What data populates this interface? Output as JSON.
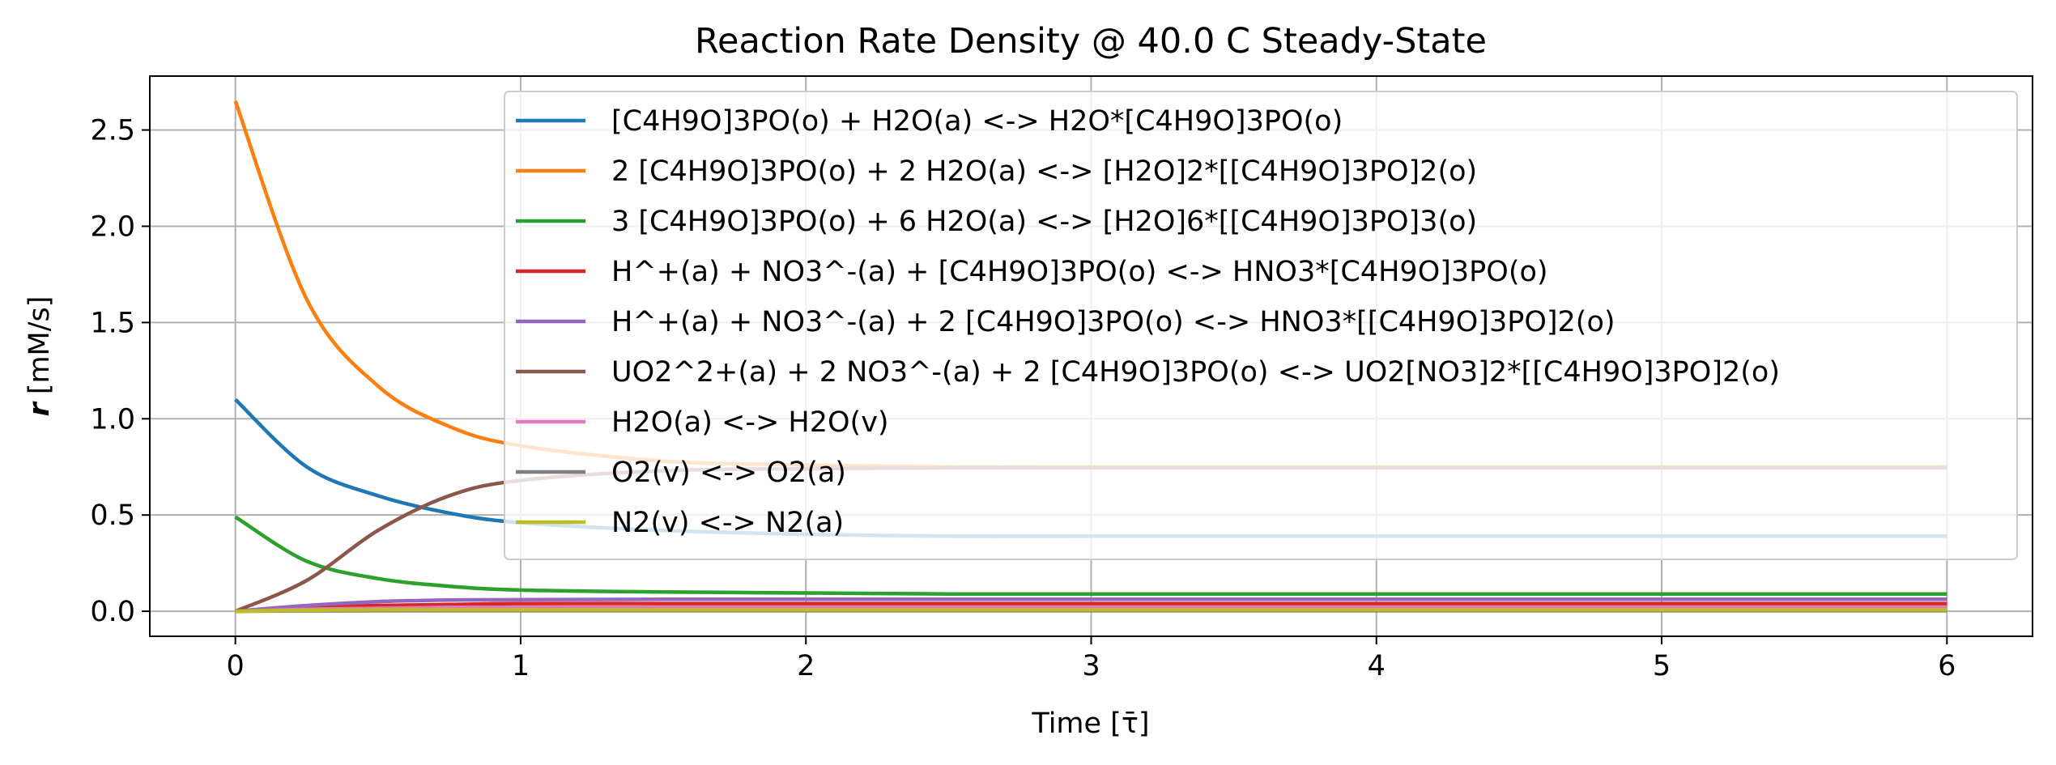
{
  "chart_data": {
    "type": "line",
    "title": "Reaction Rate Density @ 40.0 C Steady-State",
    "xlabel": "Time [τ̄]",
    "ylabel": "[mM/s]",
    "ylabel_symbol": "r",
    "xlim": [
      -0.3,
      6.3
    ],
    "ylim": [
      -0.13,
      2.78
    ],
    "xticks": [
      0,
      1,
      2,
      3,
      4,
      5,
      6
    ],
    "yticks": [
      0.0,
      0.5,
      1.0,
      1.5,
      2.0,
      2.5
    ],
    "xtick_labels": [
      "0",
      "1",
      "2",
      "3",
      "4",
      "5",
      "6"
    ],
    "ytick_labels": [
      "0.0",
      "0.5",
      "1.0",
      "1.5",
      "2.0",
      "2.5"
    ],
    "grid": true,
    "legend_position": "upper right",
    "x": [
      0,
      0.25,
      0.5,
      0.75,
      1.0,
      1.5,
      2.0,
      2.5,
      3.0,
      3.5,
      4.0,
      4.5,
      5.0,
      5.5,
      6.0
    ],
    "series": [
      {
        "name": "[C4H9O]3PO(o) + H2O(a) <-> H2O*[C4H9O]3PO(o)",
        "color": "#1f77b4",
        "values": [
          1.1,
          0.75,
          0.6,
          0.51,
          0.46,
          0.42,
          0.4,
          0.39,
          0.39,
          0.39,
          0.39,
          0.39,
          0.39,
          0.39,
          0.39
        ]
      },
      {
        "name": "2 [C4H9O]3PO(o) + 2 H2O(a) <-> [H2O]2*[[C4H9O]3PO]2(o)",
        "color": "#ff7f0e",
        "values": [
          2.65,
          1.62,
          1.17,
          0.96,
          0.86,
          0.78,
          0.76,
          0.75,
          0.75,
          0.75,
          0.75,
          0.75,
          0.75,
          0.75,
          0.75
        ]
      },
      {
        "name": "3 [C4H9O]3PO(o) + 6 H2O(a) <-> [H2O]6*[[C4H9O]3PO]3(o)",
        "color": "#2ca02c",
        "values": [
          0.49,
          0.26,
          0.17,
          0.13,
          0.11,
          0.1,
          0.095,
          0.09,
          0.09,
          0.09,
          0.09,
          0.09,
          0.09,
          0.09,
          0.09
        ]
      },
      {
        "name": "H^+(a) + NO3^-(a) + [C4H9O]3PO(o) <-> HNO3*[C4H9O]3PO(o)",
        "color": "#d62728",
        "values": [
          0.0,
          0.02,
          0.03,
          0.035,
          0.04,
          0.04,
          0.04,
          0.04,
          0.04,
          0.04,
          0.04,
          0.04,
          0.04,
          0.04,
          0.04
        ]
      },
      {
        "name": "H^+(a) + NO3^-(a) + 2 [C4H9O]3PO(o) <-> HNO3*[[C4H9O]3PO]2(o)",
        "color": "#9467bd",
        "values": [
          0.0,
          0.03,
          0.05,
          0.058,
          0.06,
          0.062,
          0.062,
          0.062,
          0.062,
          0.062,
          0.062,
          0.062,
          0.062,
          0.062,
          0.062
        ]
      },
      {
        "name": "UO2^2+(a) + 2 NO3^-(a) + 2 [C4H9O]3PO(o) <-> UO2[NO3]2*[[C4H9O]3PO]2(o)",
        "color": "#8c564b",
        "values": [
          0.0,
          0.16,
          0.42,
          0.6,
          0.68,
          0.73,
          0.74,
          0.745,
          0.745,
          0.745,
          0.745,
          0.745,
          0.745,
          0.745,
          0.745
        ]
      },
      {
        "name": "H2O(a) <-> H2O(v)",
        "color": "#e377c2",
        "values": [
          0.0,
          0.01,
          0.015,
          0.02,
          0.02,
          0.02,
          0.02,
          0.02,
          0.02,
          0.02,
          0.02,
          0.02,
          0.02,
          0.02,
          0.02
        ]
      },
      {
        "name": "O2(v) <-> O2(a)",
        "color": "#7f7f7f",
        "values": [
          0.0,
          0.002,
          0.003,
          0.003,
          0.003,
          0.003,
          0.003,
          0.003,
          0.003,
          0.003,
          0.003,
          0.003,
          0.003,
          0.003,
          0.003
        ]
      },
      {
        "name": "N2(v) <-> N2(a)",
        "color": "#bcbd22",
        "values": [
          0.0,
          0.005,
          0.008,
          0.008,
          0.008,
          0.008,
          0.008,
          0.008,
          0.008,
          0.008,
          0.008,
          0.008,
          0.008,
          0.008,
          0.008
        ]
      }
    ]
  }
}
